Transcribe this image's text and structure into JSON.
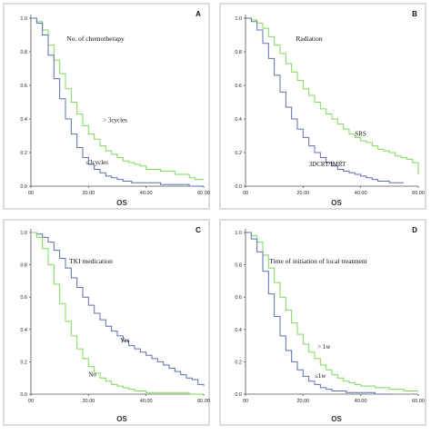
{
  "chart_data": [
    {
      "type": "line",
      "panel_letter": "A",
      "title": "No. of chemotherapy",
      "xlabel": "OS",
      "xlim": [
        0,
        60
      ],
      "ylim": [
        0,
        1.0
      ],
      "x_ticks": [
        "00",
        "20.00",
        "40.00",
        "60.00"
      ],
      "y_ticks": [
        "0.0",
        "0.2",
        "0.4",
        "0.6",
        "0.8",
        "1.0"
      ],
      "series": [
        {
          "name": "> 3cycles",
          "color": "#7ed957",
          "label_at": [
            25,
            0.38
          ],
          "x": [
            0,
            2,
            4,
            6,
            8,
            10,
            12,
            14,
            16,
            18,
            20,
            22,
            24,
            26,
            28,
            30,
            32,
            34,
            36,
            38,
            40,
            45,
            50,
            55,
            57,
            57,
            60
          ],
          "y": [
            1.0,
            0.98,
            0.93,
            0.84,
            0.75,
            0.67,
            0.58,
            0.5,
            0.43,
            0.36,
            0.31,
            0.28,
            0.24,
            0.21,
            0.19,
            0.17,
            0.15,
            0.14,
            0.13,
            0.12,
            0.1,
            0.09,
            0.07,
            0.05,
            0.05,
            0.04,
            0.04
          ]
        },
        {
          "name": "≤3cycles",
          "color": "#5b6fb0",
          "label_at": [
            19,
            0.13
          ],
          "x": [
            0,
            2,
            4,
            6,
            8,
            10,
            12,
            14,
            16,
            18,
            20,
            22,
            24,
            26,
            28,
            30,
            32,
            35,
            40,
            45,
            50,
            55,
            60
          ],
          "y": [
            1.0,
            0.97,
            0.9,
            0.78,
            0.64,
            0.52,
            0.4,
            0.31,
            0.23,
            0.17,
            0.13,
            0.1,
            0.08,
            0.06,
            0.05,
            0.04,
            0.03,
            0.02,
            0.02,
            0.01,
            0.01,
            0.0,
            0.0
          ]
        }
      ]
    },
    {
      "type": "line",
      "panel_letter": "B",
      "title": "Radiation",
      "xlabel": "OS",
      "xlim": [
        0,
        60
      ],
      "ylim": [
        0,
        1.0
      ],
      "x_ticks": [
        "00",
        "20.00",
        "40.00",
        "60.00"
      ],
      "y_ticks": [
        "0.0",
        "0.2",
        "0.4",
        "0.6",
        "0.8",
        "1.0"
      ],
      "series": [
        {
          "name": "SRS",
          "color": "#7ed957",
          "label_at": [
            38,
            0.3
          ],
          "x": [
            0,
            2,
            4,
            6,
            8,
            10,
            12,
            14,
            16,
            18,
            20,
            22,
            24,
            26,
            28,
            30,
            32,
            34,
            36,
            38,
            40,
            42,
            44,
            46,
            48,
            50,
            52,
            54,
            56,
            58,
            60
          ],
          "y": [
            1.0,
            0.99,
            0.97,
            0.94,
            0.89,
            0.84,
            0.79,
            0.73,
            0.68,
            0.63,
            0.58,
            0.54,
            0.5,
            0.46,
            0.43,
            0.4,
            0.37,
            0.34,
            0.31,
            0.29,
            0.27,
            0.26,
            0.24,
            0.22,
            0.21,
            0.2,
            0.18,
            0.17,
            0.16,
            0.14,
            0.07
          ]
        },
        {
          "name": "3DCRT/IMRT",
          "color": "#5b6fb0",
          "label_at": [
            22,
            0.12
          ],
          "x": [
            0,
            2,
            4,
            6,
            8,
            10,
            12,
            14,
            16,
            18,
            20,
            22,
            24,
            26,
            28,
            30,
            32,
            34,
            36,
            38,
            40,
            42,
            44,
            46,
            48,
            50,
            52,
            55
          ],
          "y": [
            1.0,
            0.98,
            0.93,
            0.85,
            0.76,
            0.66,
            0.56,
            0.47,
            0.4,
            0.34,
            0.29,
            0.24,
            0.2,
            0.17,
            0.14,
            0.12,
            0.1,
            0.09,
            0.08,
            0.07,
            0.06,
            0.05,
            0.04,
            0.03,
            0.03,
            0.02,
            0.02,
            0.02
          ]
        }
      ]
    },
    {
      "type": "line",
      "panel_letter": "C",
      "title": "TKI medication",
      "xlabel": "OS",
      "xlim": [
        0,
        60
      ],
      "ylim": [
        0,
        1.0
      ],
      "x_ticks": [
        "00",
        "20.00",
        "40.00",
        "60.00"
      ],
      "y_ticks": [
        "0.0",
        "0.2",
        "0.4",
        "0.6",
        "0.8",
        "1.0"
      ],
      "series": [
        {
          "name": "Yes",
          "color": "#5b6fb0",
          "label_at": [
            31,
            0.32
          ],
          "x": [
            0,
            2,
            4,
            6,
            8,
            10,
            12,
            14,
            16,
            18,
            20,
            22,
            24,
            26,
            28,
            30,
            32,
            34,
            36,
            38,
            40,
            42,
            44,
            46,
            48,
            50,
            52,
            54,
            56,
            58,
            60
          ],
          "y": [
            1.0,
            0.99,
            0.97,
            0.94,
            0.89,
            0.84,
            0.78,
            0.72,
            0.66,
            0.6,
            0.55,
            0.5,
            0.46,
            0.42,
            0.39,
            0.36,
            0.33,
            0.3,
            0.28,
            0.26,
            0.24,
            0.22,
            0.2,
            0.18,
            0.16,
            0.14,
            0.12,
            0.1,
            0.09,
            0.06,
            0.05
          ]
        },
        {
          "name": "No",
          "color": "#7ed957",
          "label_at": [
            20,
            0.11
          ],
          "x": [
            0,
            2,
            4,
            6,
            8,
            10,
            12,
            14,
            16,
            18,
            20,
            22,
            24,
            26,
            28,
            30,
            32,
            34,
            36,
            38,
            40,
            45,
            50,
            55,
            60
          ],
          "y": [
            1.0,
            0.97,
            0.9,
            0.8,
            0.68,
            0.56,
            0.45,
            0.36,
            0.28,
            0.22,
            0.17,
            0.13,
            0.1,
            0.08,
            0.06,
            0.05,
            0.04,
            0.03,
            0.02,
            0.02,
            0.01,
            0.01,
            0.01,
            0.0,
            0.0
          ]
        }
      ]
    },
    {
      "type": "line",
      "panel_letter": "D",
      "title": "Time of initiation of local treatment",
      "xlabel": "OS",
      "xlim": [
        0,
        60
      ],
      "ylim": [
        0,
        1.0
      ],
      "x_ticks": [
        "00",
        "20.00",
        "40.00",
        "60.00"
      ],
      "y_ticks": [
        "0.0",
        "0.2",
        "0.4",
        "0.6",
        "0.8",
        "1.0"
      ],
      "series": [
        {
          "name": "> 1w",
          "color": "#7ed957",
          "label_at": [
            25,
            0.28
          ],
          "x": [
            0,
            2,
            4,
            6,
            8,
            10,
            12,
            14,
            16,
            18,
            20,
            22,
            24,
            26,
            28,
            30,
            32,
            34,
            36,
            38,
            40,
            45,
            50,
            55,
            60
          ],
          "y": [
            1.0,
            0.98,
            0.94,
            0.86,
            0.78,
            0.69,
            0.6,
            0.52,
            0.44,
            0.37,
            0.31,
            0.26,
            0.22,
            0.18,
            0.15,
            0.12,
            0.1,
            0.08,
            0.07,
            0.06,
            0.05,
            0.04,
            0.03,
            0.02,
            0.02
          ]
        },
        {
          "name": "≤1w",
          "color": "#5b6fb0",
          "label_at": [
            24,
            0.1
          ],
          "x": [
            0,
            2,
            4,
            6,
            8,
            10,
            12,
            14,
            16,
            18,
            20,
            22,
            24,
            26,
            28,
            30,
            35,
            40,
            45,
            50
          ],
          "y": [
            1.0,
            0.96,
            0.88,
            0.76,
            0.62,
            0.48,
            0.36,
            0.27,
            0.2,
            0.15,
            0.11,
            0.08,
            0.06,
            0.04,
            0.03,
            0.02,
            0.01,
            0.01,
            0.0,
            0.0
          ]
        }
      ]
    }
  ]
}
